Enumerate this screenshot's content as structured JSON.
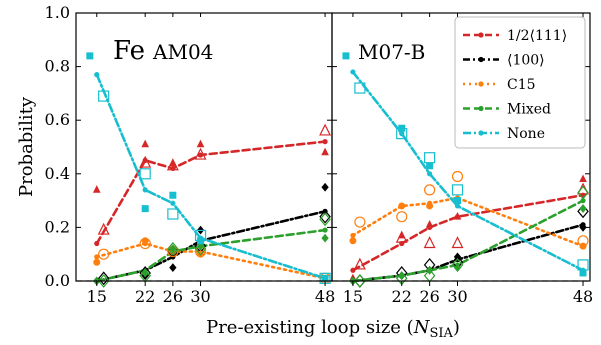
{
  "figure": {
    "ylabel": "Probability",
    "xlabel_main": "Pre-existing loop size (",
    "xlabel_var": "N",
    "xlabel_sub": "SIA",
    "xlabel_close": ")"
  },
  "colors": {
    "1/2<111>": "#d62728",
    "<100>": "#000000",
    "C15": "#ff7f0e",
    "Mixed": "#2ca02c",
    "None": "#17becf",
    "baseline": "#808080"
  },
  "chart_data": [
    {
      "type": "line",
      "title": "Fe AM04",
      "title_main": "Fe",
      "title_sub": "AM04",
      "ylim": [
        0,
        1.0
      ],
      "yticks": [
        0.0,
        0.2,
        0.4,
        0.6,
        0.8,
        1.0
      ],
      "ytick_labels": [
        "0.0",
        "0.2",
        "0.4",
        "0.6",
        "0.8",
        "1.0"
      ],
      "xlim": [
        12,
        49
      ],
      "xticks": [
        15,
        22,
        26,
        30,
        48
      ],
      "xtick_labels": [
        "15",
        "22",
        "26",
        "30",
        "48"
      ],
      "grid": false,
      "series": [
        {
          "name": "1/2⟨111⟩",
          "x": [
            15,
            22,
            26,
            30,
            48
          ],
          "y": [
            0.14,
            0.45,
            0.42,
            0.47,
            0.52
          ],
          "filled": [
            [
              15,
              0.34
            ],
            [
              22,
              0.51
            ],
            [
              26,
              0.44
            ],
            [
              30,
              0.51
            ],
            [
              48,
              0.48
            ]
          ],
          "open": [
            [
              16,
              0.19
            ],
            [
              22,
              0.44
            ],
            [
              26,
              0.43
            ],
            [
              30,
              0.47
            ],
            [
              48,
              0.56
            ]
          ]
        },
        {
          "name": "⟨100⟩",
          "x": [
            15,
            22,
            26,
            30,
            48
          ],
          "y": [
            0.0,
            0.04,
            0.09,
            0.15,
            0.26
          ],
          "filled": [
            [
              15,
              0.0
            ],
            [
              22,
              0.02
            ],
            [
              26,
              0.05
            ],
            [
              30,
              0.19
            ],
            [
              48,
              0.35
            ]
          ],
          "open": [
            [
              16,
              0.01
            ],
            [
              22,
              0.03
            ],
            [
              26,
              0.11
            ],
            [
              30,
              0.13
            ],
            [
              48,
              0.24
            ]
          ]
        },
        {
          "name": "C15",
          "x": [
            15,
            22,
            26,
            30,
            48
          ],
          "y": [
            0.09,
            0.14,
            0.11,
            0.11,
            0.01
          ],
          "filled": [
            [
              15,
              0.07
            ],
            [
              22,
              0.15
            ],
            [
              26,
              0.11
            ],
            [
              30,
              0.1
            ],
            [
              48,
              0.01
            ]
          ],
          "open": [
            [
              16,
              0.1
            ],
            [
              22,
              0.14
            ],
            [
              26,
              0.11
            ],
            [
              30,
              0.11
            ],
            [
              48,
              0.01
            ]
          ]
        },
        {
          "name": "Mixed",
          "x": [
            15,
            22,
            26,
            30,
            48
          ],
          "y": [
            0.0,
            0.04,
            0.11,
            0.13,
            0.19
          ],
          "filled": [
            [
              15,
              0.0
            ],
            [
              22,
              0.03
            ],
            [
              26,
              0.12
            ],
            [
              30,
              0.13
            ],
            [
              48,
              0.16
            ]
          ],
          "open": [
            [
              16,
              0.0
            ],
            [
              22,
              0.02
            ],
            [
              26,
              0.12
            ],
            [
              30,
              0.12
            ],
            [
              48,
              0.23
            ]
          ]
        },
        {
          "name": "None",
          "x": [
            15,
            22,
            26,
            30,
            48
          ],
          "y": [
            0.77,
            0.34,
            0.29,
            0.16,
            0.01
          ],
          "filled": [
            [
              14,
              0.84
            ],
            [
              22,
              0.27
            ],
            [
              26,
              0.32
            ],
            [
              30,
              0.15
            ],
            [
              48,
              0.01
            ]
          ],
          "open": [
            [
              16,
              0.69
            ],
            [
              22,
              0.4
            ],
            [
              26,
              0.25
            ],
            [
              30,
              0.17
            ],
            [
              48,
              0.01
            ]
          ]
        }
      ]
    },
    {
      "type": "line",
      "title": "M07-B",
      "ylim": [
        0,
        1.0
      ],
      "xlim": [
        12,
        49
      ],
      "xticks": [
        15,
        22,
        26,
        30,
        48
      ],
      "xtick_labels": [
        "15",
        "22",
        "26",
        "30",
        "48"
      ],
      "grid": false,
      "legend": {
        "placement": "top-right",
        "entries": [
          "1/2⟨111⟩",
          "⟨100⟩",
          "C15",
          "Mixed",
          "None"
        ]
      },
      "series": [
        {
          "name": "1/2⟨111⟩",
          "x": [
            15,
            22,
            26,
            30,
            48
          ],
          "y": [
            0.04,
            0.14,
            0.2,
            0.24,
            0.32
          ],
          "filled": [
            [
              15,
              0.01
            ],
            [
              22,
              0.17
            ],
            [
              26,
              0.21
            ],
            [
              30,
              0.24
            ],
            [
              48,
              0.38
            ]
          ],
          "open": [
            [
              16,
              0.06
            ],
            [
              22,
              0.16
            ],
            [
              26,
              0.14
            ],
            [
              30,
              0.14
            ],
            [
              48,
              0.34
            ]
          ]
        },
        {
          "name": "⟨100⟩",
          "x": [
            15,
            22,
            26,
            30,
            48
          ],
          "y": [
            0.0,
            0.02,
            0.04,
            0.08,
            0.21
          ],
          "filled": [
            [
              15,
              0.0
            ],
            [
              22,
              0.02
            ],
            [
              26,
              0.04
            ],
            [
              30,
              0.09
            ],
            [
              48,
              0.2
            ]
          ],
          "open": [
            [
              16,
              0.0
            ],
            [
              22,
              0.03
            ],
            [
              26,
              0.06
            ],
            [
              30,
              0.07
            ],
            [
              48,
              0.26
            ]
          ]
        },
        {
          "name": "C15",
          "x": [
            15,
            22,
            26,
            30,
            48
          ],
          "y": [
            0.17,
            0.28,
            0.29,
            0.31,
            0.13
          ],
          "filled": [
            [
              15,
              0.15
            ],
            [
              22,
              0.28
            ],
            [
              26,
              0.28
            ],
            [
              30,
              0.3
            ],
            [
              48,
              0.13
            ]
          ],
          "open": [
            [
              16,
              0.22
            ],
            [
              22,
              0.24
            ],
            [
              26,
              0.34
            ],
            [
              30,
              0.39
            ],
            [
              48,
              0.15
            ]
          ]
        },
        {
          "name": "Mixed",
          "x": [
            15,
            22,
            26,
            30,
            48
          ],
          "y": [
            0.0,
            0.02,
            0.04,
            0.06,
            0.3
          ],
          "filled": [
            [
              15,
              0.0
            ],
            [
              22,
              0.02
            ],
            [
              26,
              0.04
            ],
            [
              30,
              0.05
            ],
            [
              48,
              0.27
            ]
          ],
          "open": [
            [
              16,
              0.0
            ],
            [
              22,
              0.01
            ],
            [
              26,
              0.02
            ],
            [
              30,
              0.06
            ],
            [
              48,
              0.33
            ]
          ]
        },
        {
          "name": "None",
          "x": [
            15,
            22,
            26,
            30,
            48
          ],
          "y": [
            0.78,
            0.55,
            0.4,
            0.28,
            0.04
          ],
          "filled": [
            [
              14,
              0.84
            ],
            [
              22,
              0.57
            ],
            [
              26,
              0.43
            ],
            [
              30,
              0.3
            ],
            [
              48,
              0.03
            ]
          ],
          "open": [
            [
              16,
              0.72
            ],
            [
              22,
              0.55
            ],
            [
              26,
              0.46
            ],
            [
              30,
              0.34
            ],
            [
              48,
              0.06
            ]
          ]
        }
      ]
    }
  ]
}
